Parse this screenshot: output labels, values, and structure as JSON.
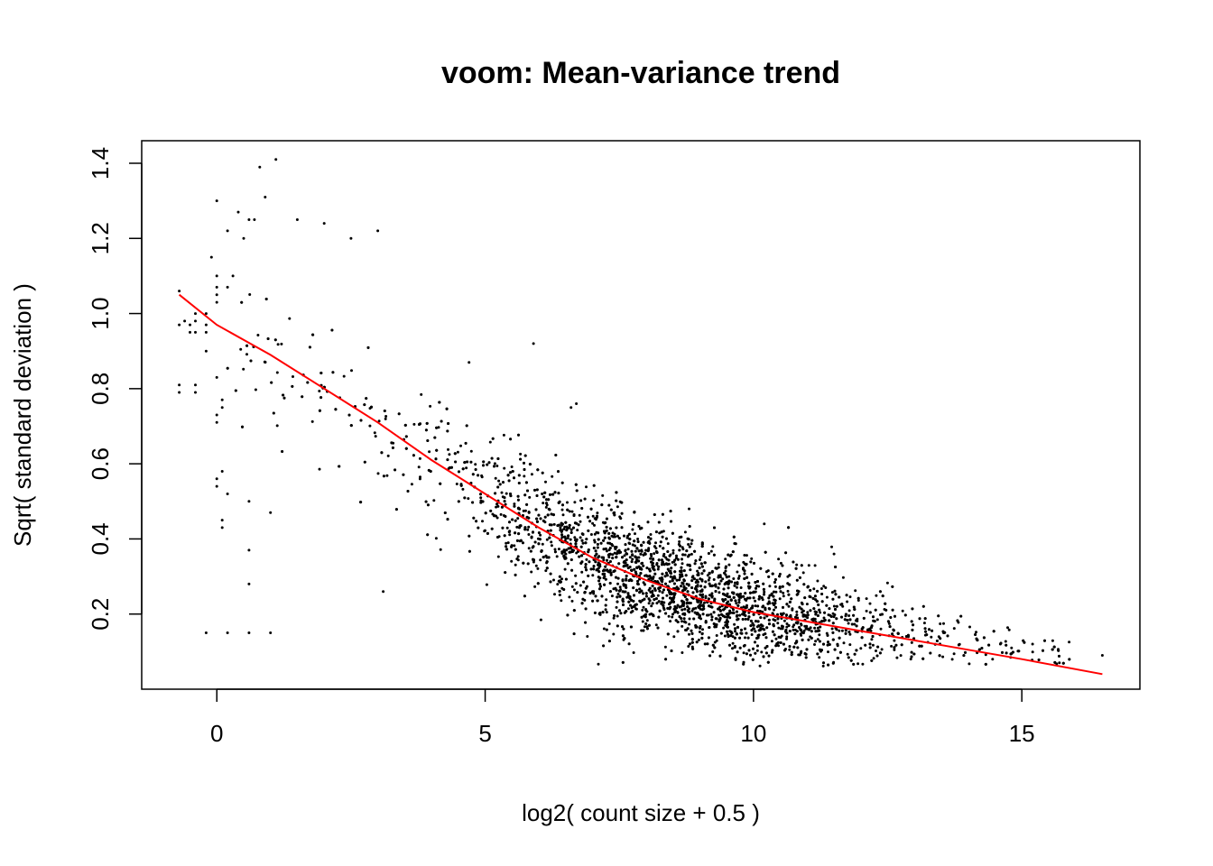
{
  "chart_data": {
    "type": "scatter",
    "title": "voom: Mean-variance trend",
    "xlabel": "log2( count size + 0.5 )",
    "ylabel": "Sqrt( standard deviation )",
    "xlim": [
      -1.4,
      17.2
    ],
    "ylim": [
      0.0,
      1.46
    ],
    "xticks": [
      0,
      5,
      10,
      15
    ],
    "yticks": [
      0.2,
      0.4,
      0.6,
      0.8,
      1.0,
      1.2,
      1.4
    ],
    "xtick_labels": [
      "0",
      "5",
      "10",
      "15"
    ],
    "ytick_labels": [
      "0.2",
      "0.4",
      "0.6",
      "0.8",
      "1.0",
      "1.2",
      "1.4"
    ],
    "grid": false,
    "legend": "none",
    "point_color": "#000000",
    "trend_color": "#ff0000",
    "points": {
      "note_count": "approx",
      "x": [
        -0.7,
        -0.7,
        -0.4,
        -0.4,
        -0.7,
        -0.7,
        -0.6,
        -0.5,
        -0.5,
        -0.4,
        -0.4,
        -0.4,
        -0.2,
        -0.2,
        -0.2,
        0.0,
        0.0,
        0.0,
        0.0,
        -0.1,
        0.0,
        0.0,
        0.0,
        0.1,
        0.1,
        -0.2,
        0.2,
        0.3,
        0.5,
        0.7,
        0.9,
        0.0,
        0.2,
        0.4,
        0.6,
        0.8,
        1.1,
        1.5,
        2.0,
        2.5,
        3.0,
        0.0,
        0.0,
        0.1,
        0.1,
        0.1,
        0.2,
        0.6,
        0.6,
        1.0,
        5.9,
        4.7,
        0.6,
        3.1,
        -0.2,
        0.2,
        0.6,
        1.0,
        10.2,
        11.5,
        16.5,
        15.7,
        15.2,
        14.6,
        8.8,
        6.6,
        6.7,
        10.9
      ],
      "y": [
        0.79,
        0.81,
        0.79,
        0.81,
        0.97,
        1.06,
        0.98,
        0.95,
        0.97,
        1.0,
        0.98,
        0.95,
        1.0,
        0.97,
        0.95,
        1.07,
        1.05,
        1.03,
        1.1,
        1.15,
        0.83,
        0.73,
        0.71,
        0.75,
        0.77,
        0.9,
        1.07,
        1.1,
        1.2,
        1.25,
        1.31,
        1.3,
        1.22,
        1.27,
        1.25,
        1.39,
        1.41,
        1.25,
        1.24,
        1.2,
        1.22,
        0.54,
        0.56,
        0.58,
        0.45,
        0.43,
        0.52,
        0.5,
        0.37,
        0.47,
        0.92,
        0.87,
        0.28,
        0.26,
        0.15,
        0.15,
        0.15,
        0.15,
        0.44,
        0.36,
        0.09,
        0.07,
        0.12,
        0.12,
        0.48,
        0.75,
        0.76,
        0.23
      ]
    },
    "trend": {
      "x": [
        -0.7,
        0.0,
        1.0,
        2.0,
        3.0,
        4.0,
        5.0,
        6.0,
        7.0,
        8.0,
        9.0,
        10.0,
        11.0,
        12.0,
        13.0,
        14.0,
        15.0,
        16.5
      ],
      "y": [
        1.05,
        0.97,
        0.89,
        0.8,
        0.71,
        0.61,
        0.52,
        0.43,
        0.35,
        0.29,
        0.24,
        0.205,
        0.18,
        0.155,
        0.13,
        0.105,
        0.08,
        0.04
      ]
    }
  }
}
